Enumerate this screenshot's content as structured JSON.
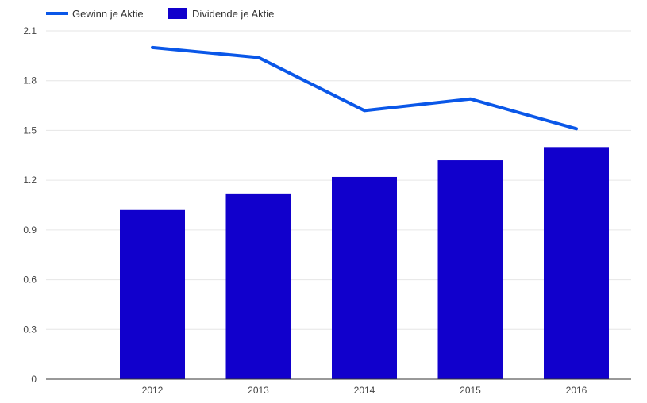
{
  "chart_data": {
    "type": "bar",
    "categories": [
      "2012",
      "2013",
      "2014",
      "2015",
      "2016"
    ],
    "series": [
      {
        "name": "Gewinn je Aktie",
        "type": "line",
        "color": "#0a57e8",
        "values": [
          2.0,
          1.94,
          1.62,
          1.69,
          1.51
        ]
      },
      {
        "name": "Dividende je Aktie",
        "type": "bar",
        "color": "#1100cc",
        "values": [
          1.02,
          1.12,
          1.22,
          1.32,
          1.4
        ]
      }
    ],
    "ylim": [
      0,
      2.1
    ],
    "yticks": [
      "0",
      "0.3",
      "0.6",
      "0.9",
      "1.2",
      "1.5",
      "1.8",
      "2.1"
    ],
    "grid": true,
    "legend_position": "top-left"
  }
}
